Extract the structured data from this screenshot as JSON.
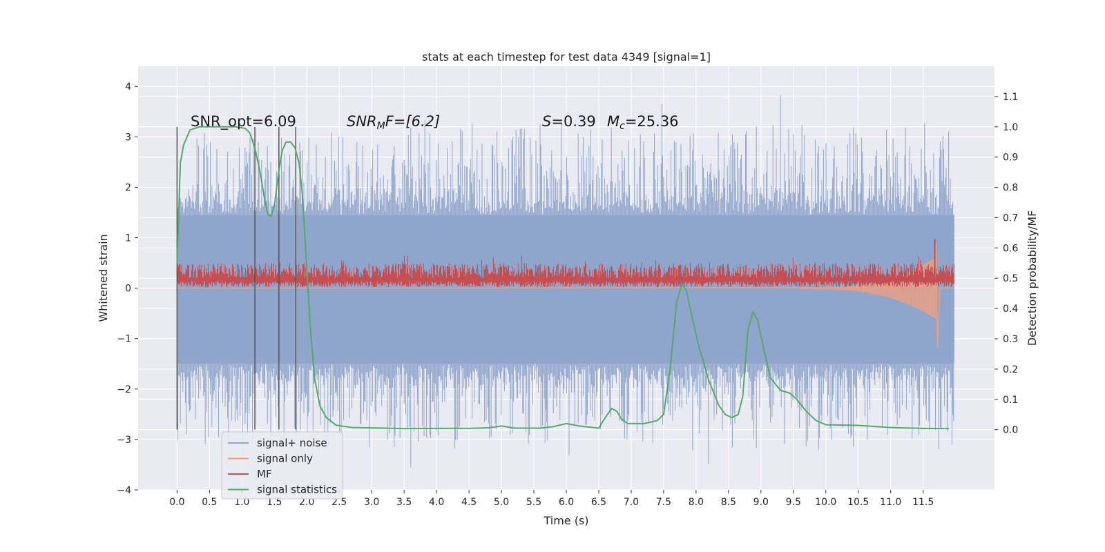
{
  "chart_data": {
    "type": "line",
    "title": "stats at each timestep for test data 4349 [signal=1]",
    "xlabel": "Time (s)",
    "ylabel_left": "Whitened strain",
    "ylabel_right": "Detection probability/MF",
    "xlim": [
      -0.6,
      12.6
    ],
    "ylim_left": [
      -4,
      4.4
    ],
    "ylim_right": [
      -0.199,
      1.2
    ],
    "x_ticks": [
      "0.0",
      "0.5",
      "1.0",
      "1.5",
      "2.0",
      "2.5",
      "3.0",
      "3.5",
      "4.0",
      "4.5",
      "5.0",
      "5.5",
      "6.0",
      "6.5",
      "7.0",
      "7.5",
      "8.0",
      "8.5",
      "9.0",
      "9.5",
      "10.0",
      "10.5",
      "11.0",
      "11.5"
    ],
    "y_ticks_left": [
      "4",
      "3",
      "2",
      "1",
      "0",
      "−1",
      "−2",
      "−3",
      "−4"
    ],
    "y_ticks_right": [
      "1.1",
      "1.0",
      "0.9",
      "0.8",
      "0.7",
      "0.6",
      "0.5",
      "0.4",
      "0.3",
      "0.2",
      "0.1",
      "0.0"
    ],
    "grid": true,
    "legend": {
      "placement": "lower-left",
      "entries": [
        {
          "label": "signal+ noise",
          "color": "#8fa5cc"
        },
        {
          "label": "signal only",
          "color": "#e8a085"
        },
        {
          "label": "MF",
          "color": "#c44e52"
        },
        {
          "label": "signal statistics",
          "color": "#55a868"
        }
      ]
    },
    "annotations": {
      "snr_opt": "SNR_opt=6.09",
      "snr_mf_sym": "SNR",
      "snr_mf_sub": "M",
      "snr_mf_rest": "F=[6.2]",
      "s_sym": "S",
      "s_rest": "=0.39",
      "mc_sym": "M",
      "mc_sub": "c",
      "mc_rest": "=25.36"
    },
    "vertical_markers_s": [
      0.0,
      1.2,
      1.57,
      1.83
    ],
    "series": [
      {
        "name": "signal+ noise",
        "axis": "left",
        "color": "#8fa5cc",
        "envelope": {
          "x_start": 0.0,
          "x_end": 11.98,
          "upper_typical": 1.45,
          "lower_typical": -1.5,
          "upper_peaks_max": 4.1,
          "lower_peaks_min": -3.65
        }
      },
      {
        "name": "signal only",
        "axis": "left",
        "color": "#e8a085",
        "points": [
          [
            0.0,
            0.0
          ],
          [
            10.0,
            0.01
          ],
          [
            11.0,
            0.02
          ],
          [
            11.5,
            0.05
          ],
          [
            11.66,
            0.15
          ],
          [
            11.7,
            0.9
          ],
          [
            11.72,
            -1.2
          ],
          [
            11.76,
            0.0
          ],
          [
            11.98,
            0.0
          ]
        ]
      },
      {
        "name": "MF",
        "axis": "right",
        "color": "#c44e52",
        "band": {
          "x_start": 0.0,
          "x_end": 11.98,
          "center": 0.5,
          "low": 0.47,
          "high": 0.55,
          "peak_x": 11.68,
          "peak_y": 0.63
        }
      },
      {
        "name": "signal statistics",
        "axis": "right",
        "color": "#55a868",
        "points": [
          [
            0.0,
            0.55
          ],
          [
            0.05,
            0.88
          ],
          [
            0.1,
            0.94
          ],
          [
            0.2,
            0.99
          ],
          [
            0.35,
            1.0
          ],
          [
            0.6,
            1.0
          ],
          [
            0.9,
            1.0
          ],
          [
            1.05,
            0.995
          ],
          [
            1.12,
            0.98
          ],
          [
            1.2,
            0.93
          ],
          [
            1.28,
            0.85
          ],
          [
            1.35,
            0.76
          ],
          [
            1.4,
            0.71
          ],
          [
            1.45,
            0.705
          ],
          [
            1.5,
            0.74
          ],
          [
            1.56,
            0.84
          ],
          [
            1.62,
            0.92
          ],
          [
            1.68,
            0.95
          ],
          [
            1.75,
            0.95
          ],
          [
            1.82,
            0.93
          ],
          [
            1.88,
            0.88
          ],
          [
            1.93,
            0.78
          ],
          [
            1.98,
            0.6
          ],
          [
            2.05,
            0.35
          ],
          [
            2.12,
            0.17
          ],
          [
            2.2,
            0.08
          ],
          [
            2.3,
            0.04
          ],
          [
            2.45,
            0.015
          ],
          [
            2.7,
            0.007
          ],
          [
            3.2,
            0.005
          ],
          [
            3.5,
            0.003
          ],
          [
            4.0,
            0.004
          ],
          [
            4.5,
            0.004
          ],
          [
            4.8,
            0.006
          ],
          [
            5.0,
            0.012
          ],
          [
            5.2,
            0.005
          ],
          [
            5.6,
            0.005
          ],
          [
            5.8,
            0.01
          ],
          [
            6.0,
            0.02
          ],
          [
            6.2,
            0.012
          ],
          [
            6.5,
            0.005
          ],
          [
            6.6,
            0.04
          ],
          [
            6.7,
            0.07
          ],
          [
            6.78,
            0.06
          ],
          [
            6.85,
            0.035
          ],
          [
            6.95,
            0.02
          ],
          [
            7.2,
            0.02
          ],
          [
            7.4,
            0.03
          ],
          [
            7.5,
            0.05
          ],
          [
            7.6,
            0.2
          ],
          [
            7.7,
            0.42
          ],
          [
            7.78,
            0.48
          ],
          [
            7.85,
            0.46
          ],
          [
            7.95,
            0.36
          ],
          [
            8.05,
            0.27
          ],
          [
            8.2,
            0.16
          ],
          [
            8.35,
            0.08
          ],
          [
            8.45,
            0.05
          ],
          [
            8.55,
            0.04
          ],
          [
            8.65,
            0.05
          ],
          [
            8.72,
            0.11
          ],
          [
            8.8,
            0.33
          ],
          [
            8.88,
            0.39
          ],
          [
            8.95,
            0.36
          ],
          [
            9.05,
            0.26
          ],
          [
            9.15,
            0.17
          ],
          [
            9.3,
            0.13
          ],
          [
            9.45,
            0.12
          ],
          [
            9.55,
            0.1
          ],
          [
            9.7,
            0.06
          ],
          [
            9.85,
            0.03
          ],
          [
            10.0,
            0.016
          ],
          [
            10.5,
            0.014
          ],
          [
            11.0,
            0.007
          ],
          [
            11.5,
            0.004
          ],
          [
            11.9,
            0.003
          ]
        ]
      }
    ]
  }
}
